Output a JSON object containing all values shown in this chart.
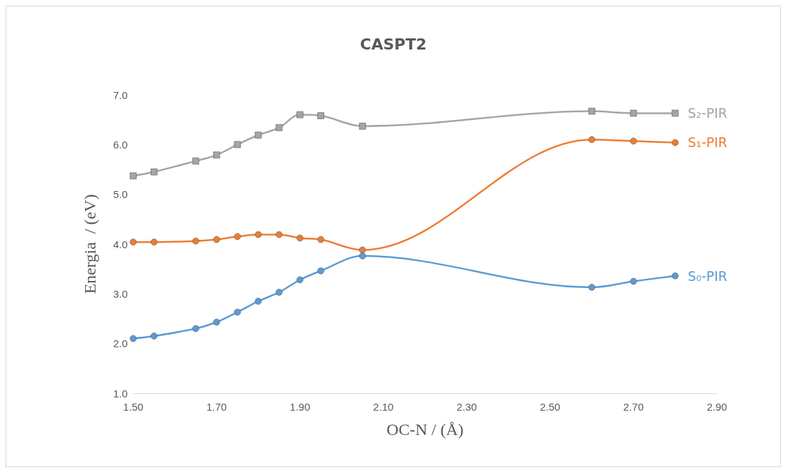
{
  "chart_data": {
    "type": "line",
    "title": "CASPT2",
    "xlabel": "OC-N / (Å)",
    "ylabel": "Energia  / (eV)",
    "x": [
      1.5,
      1.55,
      1.65,
      1.7,
      1.75,
      1.8,
      1.85,
      1.9,
      1.95,
      2.05,
      2.6,
      2.7,
      2.8
    ],
    "xlim": [
      1.5,
      2.9
    ],
    "xticks": [
      {
        "value": 1.5,
        "label": "1.50"
      },
      {
        "value": 1.7,
        "label": "1.70"
      },
      {
        "value": 1.9,
        "label": "1.90"
      },
      {
        "value": 2.1,
        "label": "2.10"
      },
      {
        "value": 2.3,
        "label": "2.30"
      },
      {
        "value": 2.5,
        "label": "2.50"
      },
      {
        "value": 2.7,
        "label": "2.70"
      },
      {
        "value": 2.9,
        "label": "2.90"
      }
    ],
    "ylim": [
      1,
      7
    ],
    "yticks": [
      {
        "value": 1,
        "label": "1.0"
      },
      {
        "value": 2,
        "label": "2.0"
      },
      {
        "value": 3,
        "label": "3.0"
      },
      {
        "value": 4,
        "label": "4.0"
      },
      {
        "value": 5,
        "label": "5.0"
      },
      {
        "value": 6,
        "label": "6.0"
      },
      {
        "value": 7,
        "label": "7.0"
      }
    ],
    "grid": false,
    "legend": false,
    "series": [
      {
        "name": "S₂-PIR",
        "color": "#a5a5a5",
        "marker": "square",
        "values": [
          5.37,
          5.45,
          5.67,
          5.79,
          6.0,
          6.19,
          6.34,
          6.6,
          6.58,
          6.37,
          6.67,
          6.63,
          6.63
        ]
      },
      {
        "name": "S₁-PIR",
        "color": "#ed7d31",
        "marker": "circle",
        "values": [
          4.04,
          4.04,
          4.06,
          4.09,
          4.15,
          4.19,
          4.19,
          4.12,
          4.09,
          3.88,
          6.1,
          6.07,
          6.04
        ]
      },
      {
        "name": "S₀-PIR",
        "color": "#5b9bd5",
        "marker": "circle",
        "values": [
          2.1,
          2.15,
          2.3,
          2.43,
          2.63,
          2.85,
          3.03,
          3.28,
          3.46,
          3.76,
          3.13,
          3.25,
          3.36
        ]
      }
    ]
  }
}
